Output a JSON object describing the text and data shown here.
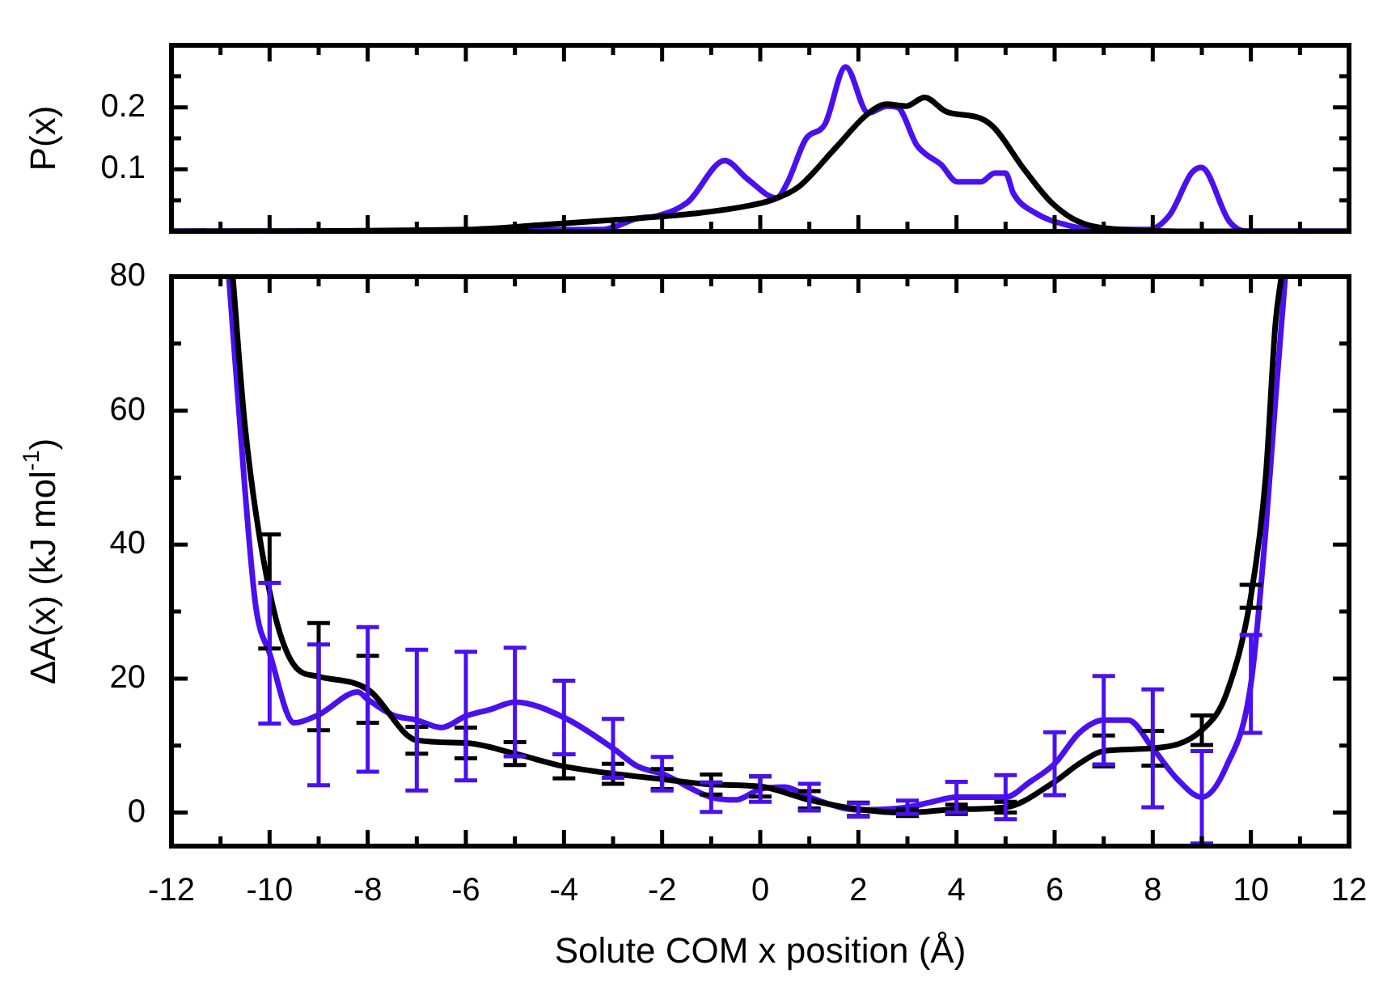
{
  "chart_data": [
    {
      "type": "line",
      "ylabel": "P(x)",
      "xlim": [
        -12,
        12
      ],
      "xticks": [
        -12,
        {
          "value": -11,
          "label": null
        },
        -10,
        {
          "value": -9,
          "label": null
        },
        -8,
        {
          "value": -7,
          "label": null
        },
        -6,
        {
          "value": -5,
          "label": null
        },
        -4,
        {
          "value": -3,
          "label": null
        },
        -2,
        {
          "value": -1,
          "label": null
        },
        0,
        {
          "value": 1,
          "label": null
        },
        2,
        {
          "value": 3,
          "label": null
        },
        4,
        {
          "value": 5,
          "label": null
        },
        6,
        {
          "value": 7,
          "label": null
        },
        8,
        {
          "value": 9,
          "label": null
        },
        10,
        {
          "value": 11,
          "label": null
        },
        12
      ],
      "ylim": [
        0,
        0.3
      ],
      "yticks": [
        {
          "value": 0,
          "label": null
        },
        {
          "value": 0.05,
          "label": null
        },
        0.1,
        {
          "value": 0.15,
          "label": null
        },
        0.2,
        {
          "value": 0.25,
          "label": null
        }
      ],
      "tick_labels": "y",
      "series": [
        {
          "color": "#000000",
          "x": [
            -12,
            -6,
            -4.5,
            -2.5,
            -1.2,
            -0.33,
            0.22,
            0.77,
            1.54,
            2.2,
            2.58,
            2.97,
            3.35,
            3.79,
            4.5,
            4.78,
            5.37,
            5.93,
            6.48,
            7.36,
            9,
            12
          ],
          "values": [
            0,
            0.003,
            0.01,
            0.021,
            0.03,
            0.04,
            0.05,
            0.071,
            0.135,
            0.19,
            0.205,
            0.202,
            0.216,
            0.193,
            0.182,
            0.166,
            0.101,
            0.047,
            0.016,
            0.003,
            0,
            0
          ]
        },
        {
          "color": "#4a10f0",
          "x": [
            -12,
            -3.2,
            -2.5,
            -2.09,
            -1.48,
            -0.72,
            -0.27,
            0.33,
            0.55,
            0.93,
            1.32,
            1.74,
            2.2,
            2.58,
            2.8,
            3.19,
            3.4,
            3.68,
            4.01,
            4.5,
            4.78,
            5.0,
            5.16,
            5.6,
            6.26,
            6.8,
            7.9,
            8.35,
            8.79,
            8.99,
            9.56,
            9.9,
            12
          ],
          "values": [
            0,
            0.003,
            0.021,
            0.025,
            0.047,
            0.114,
            0.085,
            0.054,
            0.078,
            0.149,
            0.173,
            0.265,
            0.191,
            0.202,
            0.2,
            0.139,
            0.123,
            0.108,
            0.08,
            0.08,
            0.094,
            0.094,
            0.061,
            0.03,
            0.01,
            0.003,
            0.003,
            0.027,
            0.094,
            0.103,
            0.016,
            0,
            0
          ]
        }
      ]
    },
    {
      "type": "line",
      "xlabel": "Solute COM x position (Å)",
      "ylabel": "ΔA(x) (kJ mol$^{-1}$)",
      "xlim": [
        -12,
        12
      ],
      "xticks": [
        -12,
        {
          "value": -11,
          "label": null
        },
        -10,
        {
          "value": -9,
          "label": null
        },
        -8,
        {
          "value": -7,
          "label": null
        },
        -6,
        {
          "value": -5,
          "label": null
        },
        -4,
        {
          "value": -3,
          "label": null
        },
        -2,
        {
          "value": -1,
          "label": null
        },
        0,
        {
          "value": 1,
          "label": null
        },
        2,
        {
          "value": 3,
          "label": null
        },
        4,
        {
          "value": 5,
          "label": null
        },
        6,
        {
          "value": 7,
          "label": null
        },
        8,
        {
          "value": 9,
          "label": null
        },
        10,
        {
          "value": 11,
          "label": null
        },
        12
      ],
      "ylim": [
        -5,
        80
      ],
      "yticks": [
        0,
        {
          "value": 10,
          "label": null
        },
        20,
        {
          "value": 30,
          "label": null
        },
        40,
        {
          "value": 50,
          "label": null
        },
        60,
        {
          "value": 70,
          "label": null
        },
        80
      ],
      "series": [
        {
          "color": "#000000",
          "x": [
            -10.75,
            -10.5,
            -10,
            -9.5,
            -9,
            -8,
            -7,
            -6,
            -5,
            -4,
            -3,
            -2,
            -1,
            0,
            1,
            2,
            3,
            4,
            5,
            6,
            6.5,
            7,
            8,
            9,
            9.5,
            10,
            10.3,
            10.5,
            10.62
          ],
          "values": [
            80,
            57.6,
            33,
            22,
            20.3,
            18.4,
            10.8,
            10.4,
            8.8,
            6.9,
            5.8,
            5.0,
            4.2,
            3.9,
            1.9,
            0.5,
            0,
            0.5,
            0.8,
            4.6,
            7.3,
            9.2,
            9.6,
            12.3,
            17.7,
            32.3,
            50,
            73,
            80
          ],
          "errors": [
            null,
            null,
            8.5,
            null,
            8,
            5,
            2,
            2.3,
            1.7,
            1.8,
            1.5,
            1.5,
            1.5,
            1.5,
            1.3,
            1,
            0.5,
            0.7,
            0.8,
            null,
            null,
            2.3,
            2.6,
            2.2,
            null,
            1.7,
            null,
            null,
            null
          ]
        },
        {
          "color": "#4a10f0",
          "x": [
            -10.83,
            -10.5,
            -10.28,
            -10,
            -9.5,
            -9,
            -8.2,
            -8,
            -7.5,
            -7,
            -6.5,
            -6,
            -5.5,
            -5,
            -4,
            -3,
            -2.5,
            -2,
            -1,
            -0.5,
            0,
            0.5,
            1,
            2,
            3,
            3.5,
            4,
            5,
            5.5,
            6,
            6.5,
            7,
            7.5,
            8,
            8.5,
            9,
            9.5,
            10,
            10.3,
            10.5,
            10.7
          ],
          "values": [
            80,
            48,
            30.7,
            23.8,
            13.4,
            14.6,
            18,
            16.9,
            14.6,
            13.8,
            12.7,
            14.4,
            15.4,
            16.5,
            14.2,
            9.6,
            6.9,
            5.8,
            2.3,
            1.9,
            3.5,
            3.8,
            2.3,
            0.4,
            0.8,
            1.6,
            2.3,
            2.3,
            4.6,
            7.3,
            11.9,
            13.8,
            13.8,
            9.6,
            5.0,
            2.3,
            6.9,
            19.2,
            42,
            61.5,
            80
          ],
          "errors": [
            null,
            null,
            null,
            10.5,
            null,
            10.5,
            null,
            10.8,
            null,
            10.5,
            null,
            9.6,
            null,
            8.1,
            5.5,
            4.4,
            null,
            2.5,
            2.2,
            null,
            1.9,
            null,
            2,
            1,
            1,
            null,
            2.3,
            3.3,
            null,
            4.7,
            null,
            6.6,
            null,
            8.8,
            null,
            6.9,
            null,
            7.3,
            null,
            null,
            null
          ]
        }
      ]
    }
  ]
}
